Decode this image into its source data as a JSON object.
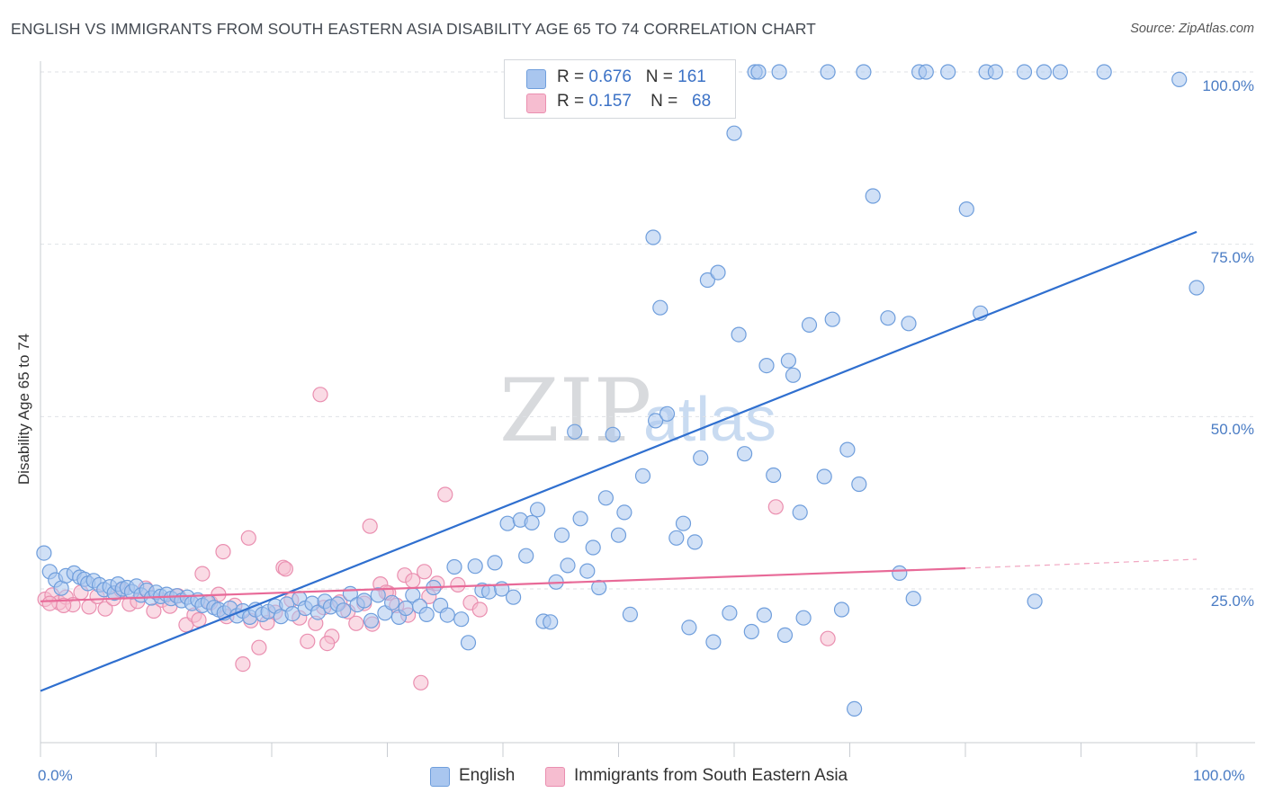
{
  "title": "ENGLISH VS IMMIGRANTS FROM SOUTH EASTERN ASIA DISABILITY AGE 65 TO 74 CORRELATION CHART",
  "source": "Source: ZipAtlas.com",
  "watermark": {
    "zip": "ZIP",
    "atlas": "atlas"
  },
  "colors": {
    "english_fill": "#a9c6ef",
    "english_stroke": "#6f9edc",
    "english_line": "#2f6fcf",
    "sea_fill": "#f6bdd0",
    "sea_stroke": "#ea8fb0",
    "sea_line": "#e86a98",
    "tick_text": "#4a7cc4"
  },
  "legend_top": [
    {
      "r_label": "R =",
      "r_value": "0.676",
      "n_label": "N =",
      "n_value": "161"
    },
    {
      "r_label": "R =",
      "r_value": "0.157",
      "n_label": "N =",
      "n_value": "68"
    }
  ],
  "chart_data": {
    "type": "scatter",
    "title": "ENGLISH VS IMMIGRANTS FROM SOUTH EASTERN ASIA DISABILITY AGE 65 TO 74 CORRELATION CHART",
    "xlabel": "",
    "ylabel": "Disability Age 65 to 74",
    "xlim": [
      0,
      100
    ],
    "ylim": [
      0,
      105
    ],
    "x_tick_labels": [
      "0.0%",
      "100.0%"
    ],
    "y_tick_labels": [
      "25.0%",
      "50.0%",
      "75.0%",
      "100.0%"
    ],
    "y_ticks": [
      25,
      50,
      75,
      100
    ],
    "grid": true,
    "legend_position": "bottom",
    "series": [
      {
        "name": "English",
        "R": 0.676,
        "N": 161,
        "trend": {
          "x": [
            0,
            100
          ],
          "y": [
            10.2,
            76.8
          ]
        },
        "points": [
          [
            0.3,
            30.2
          ],
          [
            0.8,
            27.5
          ],
          [
            1.3,
            26.3
          ],
          [
            1.8,
            25.1
          ],
          [
            2.2,
            26.9
          ],
          [
            2.9,
            27.3
          ],
          [
            3.4,
            26.7
          ],
          [
            3.8,
            26.4
          ],
          [
            4.1,
            25.8
          ],
          [
            4.6,
            26.2
          ],
          [
            5.1,
            25.6
          ],
          [
            5.5,
            24.9
          ],
          [
            6.0,
            25.3
          ],
          [
            6.4,
            24.4
          ],
          [
            6.7,
            25.7
          ],
          [
            7.1,
            25.0
          ],
          [
            7.5,
            25.2
          ],
          [
            7.9,
            24.6
          ],
          [
            8.3,
            25.4
          ],
          [
            8.7,
            24.1
          ],
          [
            9.2,
            24.8
          ],
          [
            9.6,
            23.7
          ],
          [
            10.0,
            24.5
          ],
          [
            10.4,
            23.9
          ],
          [
            10.9,
            24.2
          ],
          [
            11.3,
            23.6
          ],
          [
            11.8,
            24.0
          ],
          [
            12.2,
            23.3
          ],
          [
            12.7,
            23.8
          ],
          [
            13.1,
            22.9
          ],
          [
            13.6,
            23.4
          ],
          [
            14.0,
            22.6
          ],
          [
            14.5,
            23.1
          ],
          [
            15.0,
            22.3
          ],
          [
            15.4,
            22.0
          ],
          [
            15.9,
            21.5
          ],
          [
            16.4,
            22.2
          ],
          [
            17.0,
            21.1
          ],
          [
            17.5,
            21.8
          ],
          [
            18.1,
            20.9
          ],
          [
            18.6,
            22.0
          ],
          [
            19.2,
            21.3
          ],
          [
            19.7,
            21.7
          ],
          [
            20.3,
            22.5
          ],
          [
            20.8,
            21.0
          ],
          [
            21.3,
            22.8
          ],
          [
            21.8,
            21.4
          ],
          [
            22.4,
            23.6
          ],
          [
            22.9,
            22.2
          ],
          [
            23.5,
            22.9
          ],
          [
            24.0,
            21.6
          ],
          [
            24.6,
            23.2
          ],
          [
            25.1,
            22.4
          ],
          [
            25.7,
            22.8
          ],
          [
            26.2,
            21.9
          ],
          [
            26.8,
            24.3
          ],
          [
            27.4,
            22.7
          ],
          [
            28.0,
            23.3
          ],
          [
            28.6,
            20.4
          ],
          [
            29.2,
            24.1
          ],
          [
            29.8,
            21.5
          ],
          [
            30.4,
            23.0
          ],
          [
            31.0,
            20.9
          ],
          [
            31.6,
            22.2
          ],
          [
            32.2,
            24.1
          ],
          [
            32.8,
            22.5
          ],
          [
            33.4,
            21.3
          ],
          [
            34.0,
            25.2
          ],
          [
            34.6,
            22.6
          ],
          [
            35.2,
            21.2
          ],
          [
            35.8,
            28.2
          ],
          [
            36.4,
            20.6
          ],
          [
            37.0,
            17.2
          ],
          [
            37.6,
            28.3
          ],
          [
            38.2,
            24.8
          ],
          [
            38.8,
            24.6
          ],
          [
            39.3,
            28.8
          ],
          [
            39.9,
            25.0
          ],
          [
            40.4,
            34.5
          ],
          [
            40.9,
            23.8
          ],
          [
            41.5,
            35.0
          ],
          [
            42.0,
            29.8
          ],
          [
            42.5,
            34.6
          ],
          [
            43.0,
            36.5
          ],
          [
            43.5,
            20.3
          ],
          [
            44.1,
            20.2
          ],
          [
            44.6,
            26.0
          ],
          [
            45.1,
            32.8
          ],
          [
            45.6,
            28.4
          ],
          [
            46.2,
            47.8
          ],
          [
            46.7,
            35.2
          ],
          [
            47.3,
            27.6
          ],
          [
            47.8,
            31.0
          ],
          [
            48.3,
            25.2
          ],
          [
            48.9,
            38.2
          ],
          [
            49.5,
            47.4
          ],
          [
            50.0,
            32.8
          ],
          [
            50.5,
            36.1
          ],
          [
            51.0,
            21.3
          ],
          [
            52.1,
            41.4
          ],
          [
            53.0,
            76.0
          ],
          [
            53.2,
            49.4
          ],
          [
            53.6,
            65.8
          ],
          [
            54.2,
            50.4
          ],
          [
            55.0,
            32.4
          ],
          [
            55.6,
            34.5
          ],
          [
            56.1,
            19.4
          ],
          [
            56.6,
            31.8
          ],
          [
            57.1,
            44.0
          ],
          [
            57.7,
            69.8
          ],
          [
            58.2,
            17.3
          ],
          [
            58.6,
            70.9
          ],
          [
            59.6,
            21.5
          ],
          [
            60.0,
            91.1
          ],
          [
            60.4,
            61.9
          ],
          [
            60.9,
            44.6
          ],
          [
            61.5,
            18.8
          ],
          [
            61.8,
            100
          ],
          [
            62.1,
            100
          ],
          [
            62.6,
            21.2
          ],
          [
            62.8,
            57.4
          ],
          [
            63.4,
            41.5
          ],
          [
            63.9,
            100
          ],
          [
            64.4,
            18.3
          ],
          [
            64.7,
            58.1
          ],
          [
            65.1,
            56.0
          ],
          [
            65.7,
            36.1
          ],
          [
            66.0,
            20.8
          ],
          [
            66.5,
            63.3
          ],
          [
            67.8,
            41.3
          ],
          [
            68.1,
            100
          ],
          [
            68.5,
            64.1
          ],
          [
            69.3,
            22.0
          ],
          [
            69.8,
            45.2
          ],
          [
            70.4,
            7.6
          ],
          [
            70.8,
            40.2
          ],
          [
            71.2,
            100
          ],
          [
            72.0,
            82.0
          ],
          [
            73.3,
            64.3
          ],
          [
            74.3,
            27.3
          ],
          [
            75.1,
            63.5
          ],
          [
            75.5,
            23.6
          ],
          [
            76.0,
            100
          ],
          [
            76.6,
            100
          ],
          [
            78.5,
            100
          ],
          [
            80.1,
            80.1
          ],
          [
            81.3,
            65.0
          ],
          [
            81.8,
            100
          ],
          [
            82.6,
            100
          ],
          [
            85.1,
            100
          ],
          [
            86.0,
            23.2
          ],
          [
            86.8,
            100
          ],
          [
            88.2,
            100
          ],
          [
            92.0,
            100
          ],
          [
            98.5,
            98.9
          ],
          [
            100,
            68.7
          ],
          [
            55.8,
            100
          ]
        ]
      },
      {
        "name": "Immigrants from South Eastern Asia",
        "R": 0.157,
        "N": 68,
        "trend": {
          "x": [
            0,
            80
          ],
          "y": [
            23.2,
            28.0
          ]
        },
        "trend_dashed": {
          "x": [
            80,
            100
          ],
          "y": [
            28.0,
            29.3
          ]
        },
        "points": [
          [
            0.4,
            23.5
          ],
          [
            1.0,
            24.1
          ],
          [
            1.6,
            23.0
          ],
          [
            2.2,
            23.8
          ],
          [
            2.8,
            22.7
          ],
          [
            3.5,
            24.5
          ],
          [
            4.2,
            22.4
          ],
          [
            4.9,
            23.9
          ],
          [
            5.6,
            22.1
          ],
          [
            6.3,
            23.6
          ],
          [
            7.0,
            24.8
          ],
          [
            7.7,
            22.8
          ],
          [
            8.4,
            23.2
          ],
          [
            9.1,
            25.1
          ],
          [
            9.8,
            21.8
          ],
          [
            10.5,
            23.4
          ],
          [
            11.2,
            22.5
          ],
          [
            11.9,
            24.0
          ],
          [
            12.6,
            19.8
          ],
          [
            13.3,
            21.2
          ],
          [
            14.0,
            27.2
          ],
          [
            14.7,
            23.0
          ],
          [
            15.4,
            24.2
          ],
          [
            16.1,
            21.0
          ],
          [
            16.8,
            22.6
          ],
          [
            17.5,
            14.1
          ],
          [
            18.2,
            20.4
          ],
          [
            18.9,
            16.5
          ],
          [
            19.6,
            20.1
          ],
          [
            20.3,
            21.6
          ],
          [
            21.0,
            28.1
          ],
          [
            21.7,
            23.4
          ],
          [
            22.4,
            20.8
          ],
          [
            23.1,
            17.4
          ],
          [
            23.8,
            20.0
          ],
          [
            24.5,
            22.3
          ],
          [
            25.2,
            18.1
          ],
          [
            25.9,
            23.1
          ],
          [
            26.6,
            21.7
          ],
          [
            27.3,
            20.0
          ],
          [
            28.0,
            22.9
          ],
          [
            28.7,
            19.9
          ],
          [
            29.4,
            25.7
          ],
          [
            30.1,
            24.4
          ],
          [
            30.8,
            22.6
          ],
          [
            31.5,
            27.0
          ],
          [
            32.2,
            26.2
          ],
          [
            32.9,
            11.4
          ],
          [
            33.6,
            23.9
          ],
          [
            34.3,
            25.8
          ],
          [
            35.0,
            38.7
          ],
          [
            36.1,
            25.6
          ],
          [
            37.2,
            23.0
          ],
          [
            38.0,
            22.0
          ],
          [
            24.2,
            53.2
          ],
          [
            15.8,
            30.4
          ],
          [
            18.0,
            32.4
          ],
          [
            28.5,
            34.1
          ],
          [
            21.2,
            27.9
          ],
          [
            31.8,
            21.2
          ],
          [
            24.8,
            17.1
          ],
          [
            13.7,
            20.5
          ],
          [
            29.9,
            24.5
          ],
          [
            33.2,
            27.5
          ],
          [
            63.6,
            36.9
          ],
          [
            68.1,
            17.8
          ],
          [
            0.8,
            22.9
          ],
          [
            2.0,
            22.6
          ]
        ]
      }
    ]
  },
  "legend_bottom": [
    {
      "label": "English"
    },
    {
      "label": "Immigrants from South Eastern Asia"
    }
  ]
}
